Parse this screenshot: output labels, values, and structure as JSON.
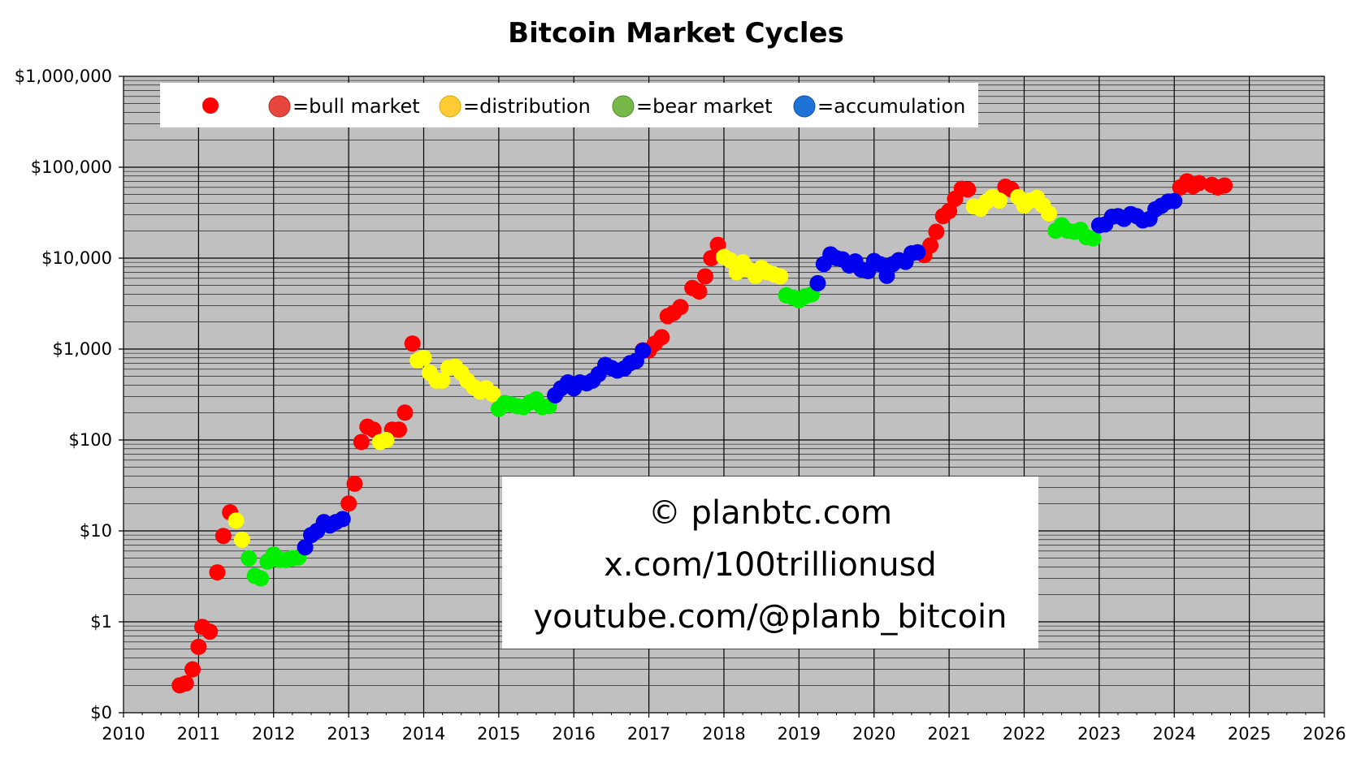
{
  "chart_data": {
    "type": "scatter",
    "title": "Bitcoin Market Cycles",
    "xlabel": "",
    "ylabel": "",
    "scale_y": "log",
    "xlim": [
      2010,
      2026
    ],
    "ylim": [
      0.1,
      1000000
    ],
    "grid": true,
    "x_tick_labels": [
      "2010",
      "2011",
      "2012",
      "2013",
      "2014",
      "2015",
      "2016",
      "2017",
      "2018",
      "2019",
      "2020",
      "2021",
      "2022",
      "2023",
      "2024",
      "2025",
      "2026"
    ],
    "y_tick_labels": [
      "$0",
      "$1",
      "$10",
      "$100",
      "$1,000",
      "$10,000",
      "$100,000",
      "$1,000,000"
    ],
    "y_tick_values": [
      0.1,
      1,
      10,
      100,
      1000,
      10000,
      100000,
      1000000
    ],
    "legend_position": "top",
    "legend": [
      {
        "label": "",
        "color": "#ff0000",
        "marker": "dot"
      },
      {
        "label": "=bull market",
        "color": "#e8453c",
        "marker": "emoji"
      },
      {
        "label": "=distribution",
        "color": "#ffcc33",
        "marker": "emoji"
      },
      {
        "label": "=bear market",
        "color": "#77b84a",
        "marker": "emoji"
      },
      {
        "label": "=accumulation",
        "color": "#1e74d6",
        "marker": "emoji"
      }
    ],
    "colors": {
      "bull": "#ff0000",
      "distribution": "#ffff00",
      "bear": "#00ee00",
      "accumulation": "#0000ee",
      "plot_bg": "#c0c0c0"
    },
    "series": [
      {
        "phase": "bull",
        "points": [
          [
            2010.75,
            0.2
          ],
          [
            2010.83,
            0.21
          ],
          [
            2010.92,
            0.3
          ],
          [
            2011.0,
            0.53
          ],
          [
            2011.05,
            0.88
          ],
          [
            2011.15,
            0.78
          ],
          [
            2011.25,
            3.5
          ],
          [
            2011.33,
            8.8
          ],
          [
            2011.42,
            16.0
          ],
          [
            2013.0,
            20.0
          ],
          [
            2013.08,
            33.0
          ],
          [
            2013.17,
            95.0
          ],
          [
            2013.25,
            140.0
          ],
          [
            2013.33,
            130.0
          ],
          [
            2013.58,
            130.0
          ],
          [
            2013.67,
            130.0
          ],
          [
            2013.75,
            200.0
          ],
          [
            2013.85,
            1150.0
          ],
          [
            2016.92,
            970.0
          ],
          [
            2017.0,
            970.0
          ],
          [
            2017.08,
            1150.0
          ],
          [
            2017.17,
            1350.0
          ],
          [
            2017.25,
            2300.0
          ],
          [
            2017.33,
            2500.0
          ],
          [
            2017.42,
            2900.0
          ],
          [
            2017.58,
            4700.0
          ],
          [
            2017.67,
            4300.0
          ],
          [
            2017.75,
            6300.0
          ],
          [
            2017.83,
            10000.0
          ],
          [
            2017.92,
            14000.0
          ],
          [
            2020.67,
            10800.0
          ],
          [
            2020.75,
            13800.0
          ],
          [
            2020.83,
            19500.0
          ],
          [
            2020.92,
            29000.0
          ],
          [
            2021.0,
            33000.0
          ],
          [
            2021.08,
            45000.0
          ],
          [
            2021.17,
            58000.0
          ],
          [
            2021.25,
            57000.0
          ],
          [
            2021.75,
            61000.0
          ],
          [
            2021.83,
            57000.0
          ],
          [
            2024.08,
            60000.0
          ],
          [
            2024.17,
            70000.0
          ],
          [
            2024.25,
            62000.0
          ],
          [
            2024.33,
            67000.0
          ],
          [
            2024.5,
            64000.0
          ],
          [
            2024.58,
            60000.0
          ],
          [
            2024.67,
            63000.0
          ]
        ]
      },
      {
        "phase": "distribution",
        "points": [
          [
            2011.5,
            13.0
          ],
          [
            2011.58,
            8.0
          ],
          [
            2013.42,
            95.0
          ],
          [
            2013.5,
            100.0
          ],
          [
            2013.92,
            750.0
          ],
          [
            2014.0,
            800.0
          ],
          [
            2014.08,
            550.0
          ],
          [
            2014.17,
            450.0
          ],
          [
            2014.25,
            450.0
          ],
          [
            2014.33,
            620.0
          ],
          [
            2014.42,
            640.0
          ],
          [
            2014.5,
            550.0
          ],
          [
            2014.58,
            450.0
          ],
          [
            2014.67,
            380.0
          ],
          [
            2014.75,
            340.0
          ],
          [
            2014.83,
            370.0
          ],
          [
            2014.92,
            320.0
          ],
          [
            2018.0,
            10300.0
          ],
          [
            2018.08,
            9500.0
          ],
          [
            2018.17,
            7000.0
          ],
          [
            2018.25,
            9000.0
          ],
          [
            2018.33,
            7500.0
          ],
          [
            2018.42,
            6400.0
          ],
          [
            2018.5,
            7800.0
          ],
          [
            2018.58,
            7000.0
          ],
          [
            2018.67,
            6600.0
          ],
          [
            2018.75,
            6300.0
          ],
          [
            2021.33,
            37000.0
          ],
          [
            2021.42,
            35000.0
          ],
          [
            2021.5,
            42000.0
          ],
          [
            2021.58,
            47000.0
          ],
          [
            2021.67,
            43000.0
          ],
          [
            2021.92,
            47000.0
          ],
          [
            2022.0,
            38000.0
          ],
          [
            2022.08,
            43000.0
          ],
          [
            2022.17,
            46000.0
          ],
          [
            2022.25,
            38000.0
          ],
          [
            2022.33,
            31000.0
          ]
        ]
      },
      {
        "phase": "bear",
        "points": [
          [
            2011.67,
            5.0
          ],
          [
            2011.75,
            3.2
          ],
          [
            2011.83,
            3.0
          ],
          [
            2011.92,
            4.6
          ],
          [
            2012.0,
            5.5
          ],
          [
            2012.08,
            4.8
          ],
          [
            2012.17,
            4.8
          ],
          [
            2012.25,
            5.0
          ],
          [
            2012.33,
            5.1
          ],
          [
            2015.0,
            220.0
          ],
          [
            2015.08,
            255.0
          ],
          [
            2015.17,
            245.0
          ],
          [
            2015.25,
            235.0
          ],
          [
            2015.33,
            230.0
          ],
          [
            2015.42,
            260.0
          ],
          [
            2015.5,
            280.0
          ],
          [
            2015.58,
            230.0
          ],
          [
            2015.67,
            236.0
          ],
          [
            2018.83,
            3900.0
          ],
          [
            2018.92,
            3700.0
          ],
          [
            2019.0,
            3450.0
          ],
          [
            2019.08,
            3800.0
          ],
          [
            2019.17,
            4000.0
          ],
          [
            2022.42,
            20000.0
          ],
          [
            2022.5,
            23000.0
          ],
          [
            2022.58,
            20000.0
          ],
          [
            2022.67,
            19500.0
          ],
          [
            2022.75,
            20500.0
          ],
          [
            2022.83,
            17000.0
          ],
          [
            2022.92,
            16500.0
          ]
        ]
      },
      {
        "phase": "accumulation",
        "points": [
          [
            2012.42,
            6.6
          ],
          [
            2012.5,
            9.0
          ],
          [
            2012.58,
            10.0
          ],
          [
            2012.67,
            12.5
          ],
          [
            2012.75,
            11.5
          ],
          [
            2012.83,
            12.5
          ],
          [
            2012.92,
            13.5
          ],
          [
            2015.75,
            310.0
          ],
          [
            2015.83,
            370.0
          ],
          [
            2015.92,
            430.0
          ],
          [
            2016.0,
            370.0
          ],
          [
            2016.08,
            430.0
          ],
          [
            2016.17,
            420.0
          ],
          [
            2016.25,
            450.0
          ],
          [
            2016.33,
            530.0
          ],
          [
            2016.42,
            670.0
          ],
          [
            2016.5,
            620.0
          ],
          [
            2016.58,
            580.0
          ],
          [
            2016.67,
            610.0
          ],
          [
            2016.75,
            700.0
          ],
          [
            2016.83,
            740.0
          ],
          [
            2016.92,
            960.0
          ],
          [
            2019.25,
            5300.0
          ],
          [
            2019.33,
            8600.0
          ],
          [
            2019.42,
            11000.0
          ],
          [
            2019.5,
            10000.0
          ],
          [
            2019.58,
            9700.0
          ],
          [
            2019.67,
            8300.0
          ],
          [
            2019.75,
            9200.0
          ],
          [
            2019.83,
            7500.0
          ],
          [
            2019.92,
            7200.0
          ],
          [
            2020.0,
            9300.0
          ],
          [
            2020.08,
            8600.0
          ],
          [
            2020.17,
            6400.0
          ],
          [
            2020.25,
            8600.0
          ],
          [
            2020.33,
            9500.0
          ],
          [
            2020.42,
            9100.0
          ],
          [
            2020.5,
            11300.0
          ],
          [
            2020.58,
            11600.0
          ],
          [
            2023.0,
            23000.0
          ],
          [
            2023.08,
            23500.0
          ],
          [
            2023.17,
            28500.0
          ],
          [
            2023.25,
            29000.0
          ],
          [
            2023.33,
            27000.0
          ],
          [
            2023.42,
            30500.0
          ],
          [
            2023.5,
            29000.0
          ],
          [
            2023.58,
            26000.0
          ],
          [
            2023.67,
            27000.0
          ],
          [
            2023.75,
            34500.0
          ],
          [
            2023.83,
            37700.0
          ],
          [
            2023.92,
            42000.0
          ],
          [
            2024.0,
            42500.0
          ]
        ]
      }
    ]
  },
  "credits": {
    "line1": "© planbtc.com",
    "line2": "x.com/100trillionusd",
    "line3": "youtube.com/@planb_bitcoin"
  }
}
